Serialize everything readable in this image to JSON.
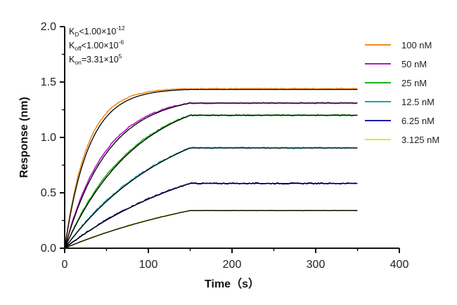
{
  "chart_data": {
    "type": "line",
    "title": "",
    "xlabel": "Time（s）",
    "ylabel": "Response (nm)",
    "xlim": [
      0,
      400
    ],
    "ylim": [
      0,
      2.0
    ],
    "xticks": [
      0,
      100,
      200,
      300,
      400
    ],
    "yticks": [
      "0.0",
      "0.5",
      "1.0",
      "1.5",
      "2.0"
    ],
    "grid": false,
    "legend_position": "top-right",
    "association_end_s": 150,
    "end_time_s": 350,
    "annotations": [
      {
        "base": "K",
        "sub": "D",
        "text": "<1.00×10",
        "sup": "-12"
      },
      {
        "base": "K",
        "sub": "off",
        "text": "<1.00×10",
        "sup": "-6"
      },
      {
        "base": "K",
        "sub": "on",
        "text": "=3.31×10",
        "sup": "5"
      }
    ],
    "fit_color": "#000000",
    "series": [
      {
        "name": "100 nM",
        "color": "#f28a1e",
        "plateau": 1.44,
        "rate": 0.0373,
        "noise": 0.004
      },
      {
        "name": "50 nM",
        "color": "#b414c8",
        "plateau": 1.31,
        "rate": 0.0208,
        "noise": 0.005
      },
      {
        "name": "25 nM",
        "color": "#19b219",
        "plateau": 1.2,
        "rate": 0.0125,
        "noise": 0.006
      },
      {
        "name": "12.5 nM",
        "color": "#1aa3b3",
        "plateau": 0.905,
        "rate": 0.0083,
        "noise": 0.006
      },
      {
        "name": "6.25 nM",
        "color": "#1a1aa6",
        "plateau": 0.585,
        "rate": 0.0062,
        "noise": 0.006
      },
      {
        "name": "3.125 nM",
        "color": "#e8e81a",
        "plateau": 0.34,
        "rate": 0.0051,
        "noise": 0.005
      }
    ]
  }
}
